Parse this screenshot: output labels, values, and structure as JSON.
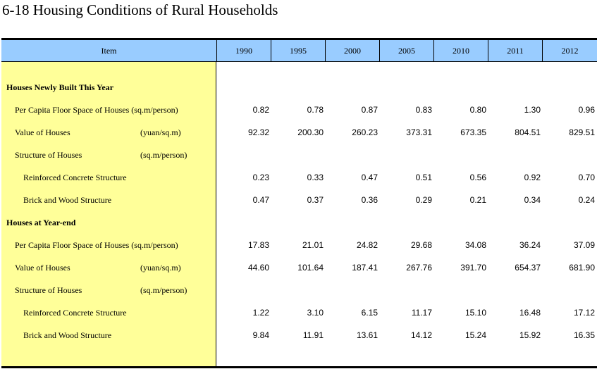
{
  "title": "6-18  Housing Conditions of Rural Households",
  "header": {
    "item": "Item",
    "years": [
      "1990",
      "1995",
      "2000",
      "2005",
      "2010",
      "2011",
      "2012"
    ]
  },
  "rows": [
    {
      "label": "Houses Newly Built This Year",
      "unit": "",
      "values": [
        "",
        "",
        "",
        "",
        "",
        "",
        ""
      ]
    },
    {
      "label": "Per Capita Floor Space of Houses (sq.m/person)",
      "unit": "",
      "values": [
        "0.82",
        "0.78",
        "0.87",
        "0.83",
        "0.80",
        "1.30",
        "0.96"
      ]
    },
    {
      "label": "Value of Houses",
      "unit": "(yuan/sq.m)",
      "values": [
        "92.32",
        "200.30",
        "260.23",
        "373.31",
        "673.35",
        "804.51",
        "829.51"
      ]
    },
    {
      "label": "Structure of Houses",
      "unit": "(sq.m/person)",
      "values": [
        "",
        "",
        "",
        "",
        "",
        "",
        ""
      ]
    },
    {
      "label": "Reinforced Concrete Structure",
      "unit": "",
      "values": [
        "0.23",
        "0.33",
        "0.47",
        "0.51",
        "0.56",
        "0.92",
        "0.70"
      ]
    },
    {
      "label": "Brick and Wood Structure",
      "unit": "",
      "values": [
        "0.47",
        "0.37",
        "0.36",
        "0.29",
        "0.21",
        "0.34",
        "0.24"
      ]
    },
    {
      "label": "Houses at Year-end",
      "unit": "",
      "values": [
        "",
        "",
        "",
        "",
        "",
        "",
        ""
      ]
    },
    {
      "label": "Per Capita Floor Space of Houses (sq.m/person)",
      "unit": "",
      "values": [
        "17.83",
        "21.01",
        "24.82",
        "29.68",
        "34.08",
        "36.24",
        "37.09"
      ]
    },
    {
      "label": "Value of Houses",
      "unit": "(yuan/sq.m)",
      "values": [
        "44.60",
        "101.64",
        "187.41",
        "267.76",
        "391.70",
        "654.37",
        "681.90"
      ]
    },
    {
      "label": "Structure of Houses",
      "unit": "(sq.m/person)",
      "values": [
        "",
        "",
        "",
        "",
        "",
        "",
        ""
      ]
    },
    {
      "label": "Reinforced Concrete Structure",
      "unit": "",
      "values": [
        "1.22",
        "3.10",
        "6.15",
        "11.17",
        "15.10",
        "16.48",
        "17.12"
      ]
    },
    {
      "label": "Brick and Wood Structure",
      "unit": "",
      "values": [
        "9.84",
        "11.91",
        "13.61",
        "14.12",
        "15.24",
        "15.92",
        "16.35"
      ]
    }
  ]
}
